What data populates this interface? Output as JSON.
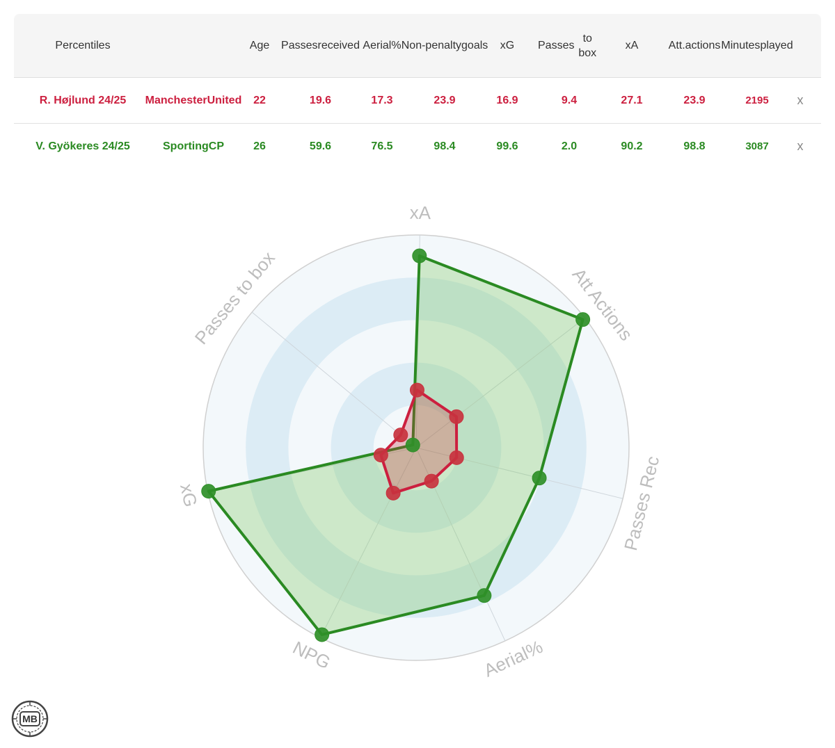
{
  "colors": {
    "hojlund": "#cc1f3f",
    "gyokeres": "#2a8a22",
    "hojlund_marker": "#c8323e",
    "gyokeres_marker": "#2f8f28",
    "hojlund_fill": "rgba(200,50,62,0.30)",
    "gyokeres_fill": "rgba(125,200,95,0.32)",
    "axis_label": "#bdbdbd",
    "grid": "#cfd6dc",
    "ring_light": "#f3f8fb",
    "ring_dark": "#dcecf5"
  },
  "table": {
    "headers": [
      {
        "key": "percentiles",
        "lines": [
          "Percentiles"
        ]
      },
      {
        "key": "age",
        "lines": [
          "Age"
        ]
      },
      {
        "key": "passes_received",
        "lines": [
          "Passes",
          "received"
        ]
      },
      {
        "key": "aerial",
        "lines": [
          "Aerial%"
        ]
      },
      {
        "key": "npg",
        "lines": [
          "Non-",
          "penalty",
          "goals"
        ]
      },
      {
        "key": "xg",
        "lines": [
          "xG"
        ]
      },
      {
        "key": "passes_box",
        "lines": [
          "Passes",
          "to box"
        ]
      },
      {
        "key": "xa",
        "lines": [
          "xA"
        ]
      },
      {
        "key": "att_actions",
        "lines": [
          "Att.",
          "actions"
        ]
      },
      {
        "key": "minutes",
        "lines": [
          "Minutes",
          "played"
        ]
      }
    ],
    "rows": [
      {
        "player": "R. Højlund 24/25",
        "team_lines": [
          "Manchester",
          "United"
        ],
        "color": "hojlund",
        "values": [
          "22",
          "19.6",
          "17.3",
          "23.9",
          "16.9",
          "9.4",
          "27.1",
          "23.9",
          "2195"
        ],
        "remove_label": "x"
      },
      {
        "player": "V. Gyökeres 24/25",
        "team_lines": [
          "Sporting",
          "CP"
        ],
        "color": "gyokeres",
        "values": [
          "26",
          "59.6",
          "76.5",
          "98.4",
          "99.6",
          "2.0",
          "90.2",
          "98.8",
          "3087"
        ],
        "remove_label": "x"
      }
    ]
  },
  "chart_data": {
    "type": "radar",
    "axes": [
      "xA",
      "Att Actions",
      "Passes Rec",
      "Aerial%",
      "NPG",
      "xG",
      "Passes to box"
    ],
    "range": [
      0,
      100
    ],
    "series": [
      {
        "name": "R. Højlund 24/25",
        "color": "hojlund",
        "values": [
          27.1,
          23.9,
          19.6,
          17.3,
          23.9,
          16.9,
          9.4
        ]
      },
      {
        "name": "V. Gyökeres 24/25",
        "color": "gyokeres",
        "values": [
          90.2,
          98.8,
          59.6,
          76.5,
          98.4,
          99.6,
          2.0
        ]
      }
    ],
    "grid_rings": 5
  },
  "logo": {
    "text": "MB"
  }
}
